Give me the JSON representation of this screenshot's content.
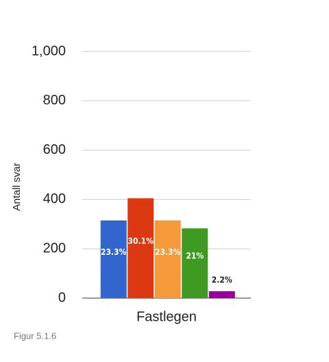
{
  "chart_data": {
    "type": "bar",
    "y_label": "Antall svar",
    "categories": [
      "Fastlegen"
    ],
    "series": [
      {
        "color": "#3366cc",
        "values": [
          315
        ],
        "data_labels": [
          "23.3%"
        ]
      },
      {
        "color": "#dc3912",
        "values": [
          405
        ],
        "data_labels": [
          "30.1%"
        ]
      },
      {
        "color": "#f59a3a",
        "values": [
          315
        ],
        "data_labels": [
          "23.3%"
        ]
      },
      {
        "color": "#3f9a22",
        "values": [
          283
        ],
        "data_labels": [
          "21%"
        ]
      },
      {
        "color": "#990099",
        "values": [
          28
        ],
        "data_labels": [
          "2.2%"
        ]
      }
    ],
    "ylim": [
      0,
      1000
    ],
    "yticks": [
      0,
      200,
      400,
      600,
      800,
      {
        "value": 1000,
        "label": "1,000"
      }
    ],
    "grid": true
  },
  "caption": "Figur 5.1.6"
}
